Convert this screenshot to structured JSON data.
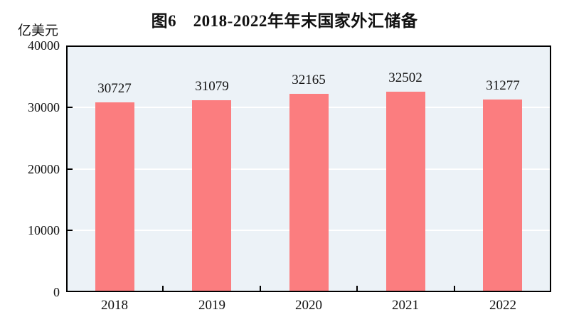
{
  "chart_data": {
    "type": "bar",
    "title": "图6　2018-2022年年末国家外汇储备",
    "ylabel": "亿美元",
    "xlabel": "",
    "categories": [
      "2018",
      "2019",
      "2020",
      "2021",
      "2022"
    ],
    "values": [
      30727,
      31079,
      32165,
      32502,
      31277
    ],
    "data_labels": [
      "30727",
      "31079",
      "32165",
      "32502",
      "31277"
    ],
    "ylim": [
      0,
      40000
    ],
    "yticks": [
      0,
      10000,
      20000,
      30000,
      40000
    ],
    "ytick_labels": [
      "0",
      "10000",
      "20000",
      "30000",
      "40000"
    ],
    "grid": true,
    "legend_position": "none",
    "bar_color": "#fb7d7f",
    "plot_background": "#ecf2f7",
    "grid_color": "#ffffff",
    "axis_color": "#000000",
    "text_color": "#111111"
  }
}
